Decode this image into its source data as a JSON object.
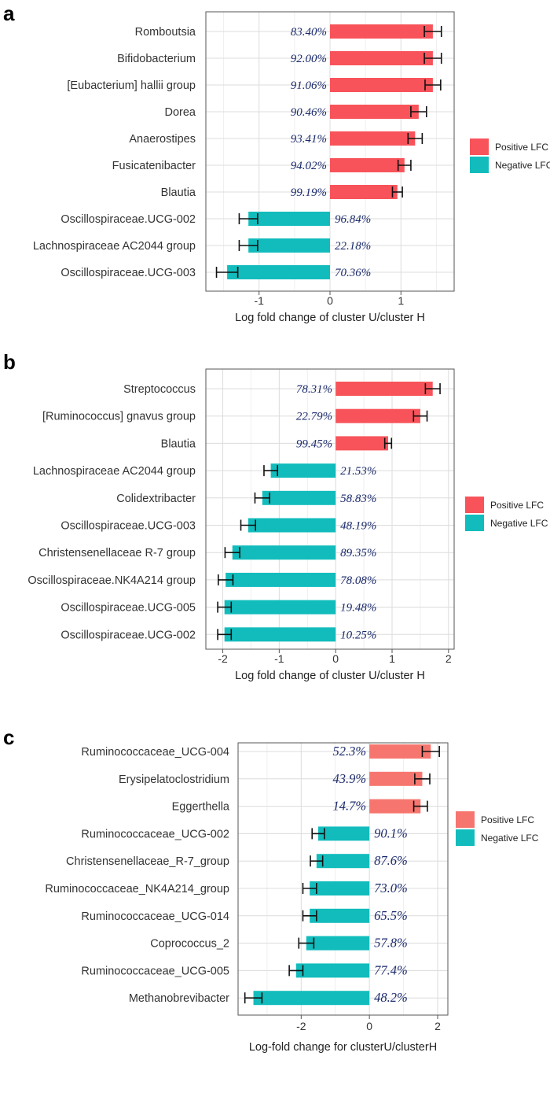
{
  "chart_data": [
    {
      "panel": "a",
      "type": "bar",
      "orientation": "horizontal",
      "categories": [
        "Romboutsia",
        "Bifidobacterium",
        "[Eubacterium] hallii group",
        "Dorea",
        "Anaerostipes",
        "Fusicatenibacter",
        "Blautia",
        "Oscillospiraceae.UCG-002",
        "Lachnospiraceae AC2044 group",
        "Oscillospiraceae.UCG-003"
      ],
      "values": [
        1.45,
        1.45,
        1.45,
        1.25,
        1.2,
        1.05,
        0.95,
        -1.15,
        -1.15,
        -1.45
      ],
      "errors": [
        0.12,
        0.12,
        0.11,
        0.11,
        0.1,
        0.09,
        0.07,
        0.13,
        0.13,
        0.15
      ],
      "percent_labels": [
        "83.40%",
        "92.00%",
        "91.06%",
        "90.46%",
        "93.41%",
        "94.02%",
        "99.19%",
        "96.84%",
        "22.18%",
        "70.36%"
      ],
      "xlabel": "Log fold change of cluster U/cluster H",
      "xlim": [
        -1.75,
        1.75
      ],
      "xticks": [
        -1,
        0,
        1
      ],
      "xtick_labels": [
        "-1",
        "0",
        "1"
      ],
      "legend": [
        "Positive LFC",
        "Negative LFC"
      ],
      "legend_position": "right",
      "colors": {
        "positive": "#f8535a",
        "negative": "#12bcbc"
      }
    },
    {
      "panel": "b",
      "type": "bar",
      "orientation": "horizontal",
      "categories": [
        "Streptococcus",
        "[Ruminococcus] gnavus group",
        "Blautia",
        "Lachnospiraceae AC2044 group",
        "Colidextribacter",
        "Oscillospiraceae.UCG-003",
        "Christensenellaceae R-7 group",
        "Oscillospiraceae.NK4A214 group",
        "Oscillospiraceae.UCG-005",
        "Oscillospiraceae.UCG-002"
      ],
      "values": [
        1.72,
        1.5,
        0.93,
        -1.15,
        -1.3,
        -1.55,
        -1.83,
        -1.95,
        -1.97,
        -1.97
      ],
      "errors": [
        0.13,
        0.12,
        0.06,
        0.12,
        0.13,
        0.13,
        0.13,
        0.13,
        0.12,
        0.12
      ],
      "percent_labels": [
        "78.31%",
        "22.79%",
        "99.45%",
        "21.53%",
        "58.83%",
        "48.19%",
        "89.35%",
        "78.08%",
        "19.48%",
        "10.25%"
      ],
      "xlabel": "Log fold change of cluster U/cluster H",
      "xlim": [
        -2.3,
        2.1
      ],
      "xticks": [
        -2,
        -1,
        0,
        1,
        2
      ],
      "xtick_labels": [
        "-2",
        "-1",
        "0",
        "1",
        "2"
      ],
      "legend": [
        "Positive LFC",
        "Negative LFC"
      ],
      "legend_position": "right",
      "colors": {
        "positive": "#f8535a",
        "negative": "#12bcbc"
      }
    },
    {
      "panel": "c",
      "type": "bar",
      "orientation": "horizontal",
      "categories": [
        "Ruminococcaceae_UCG-004",
        "Erysipelatoclostridium",
        "Eggerthella",
        "Ruminococcaceae_UCG-002",
        "Christensenellaceae_R-7_group",
        "Ruminococcaceae_NK4A214_group",
        "Ruminococcaceae_UCG-014",
        "Coprococcus_2",
        "Ruminococcaceae_UCG-005",
        "Methanobrevibacter"
      ],
      "values": [
        1.8,
        1.55,
        1.5,
        -1.5,
        -1.55,
        -1.75,
        -1.75,
        -1.85,
        -2.15,
        -3.4
      ],
      "errors": [
        0.25,
        0.22,
        0.2,
        0.18,
        0.18,
        0.2,
        0.2,
        0.22,
        0.2,
        0.25
      ],
      "percent_labels": [
        "52.3%",
        "43.9%",
        "14.7%",
        "90.1%",
        "87.6%",
        "73.0%",
        "65.5%",
        "57.8%",
        "77.4%",
        "48.2%"
      ],
      "xlabel": "Log-fold change for clusterU/clusterH",
      "xlim": [
        -3.85,
        2.3
      ],
      "xticks": [
        -2,
        0,
        2
      ],
      "xtick_labels": [
        "-2",
        "0",
        "2"
      ],
      "legend": [
        "Positive LFC",
        "Negative LFC"
      ],
      "legend_position": "right",
      "colors": {
        "positive": "#f6766f",
        "negative": "#12bcbc"
      }
    }
  ]
}
